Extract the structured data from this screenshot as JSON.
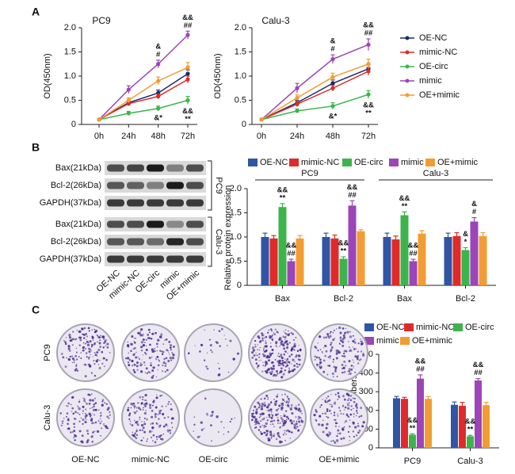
{
  "panels": [
    "A",
    "B",
    "C"
  ],
  "blot": {
    "row_labels": [
      "Bax(21kDa)",
      "Bcl-2(26kDa)",
      "GAPDH(37kDa)",
      "Bax(21kDa)",
      "Bcl-2(26kDa)",
      "GAPDH(37kDa)"
    ],
    "groups": [
      "PC9",
      "Calu-3"
    ],
    "column_labels": [
      "OE-NC",
      "mimic-NC",
      "OE-circ",
      "mimic",
      "OE+mimic"
    ]
  },
  "colony": {
    "row_labels": [
      "PC9",
      "Calu-3"
    ],
    "column_labels": [
      "OE-NC",
      "mimic-NC",
      "OE-circ",
      "mimic",
      "OE+mimic"
    ]
  },
  "chart_data": [
    {
      "type": "line",
      "title": "PC9",
      "ylabel": "OD(450nm)",
      "categories": [
        "0h",
        "24h",
        "48h",
        "72h"
      ],
      "ylim": [
        0,
        2
      ],
      "yticks": [
        0,
        0.5,
        {
          "value": 1,
          "label": "1.0"
        },
        1.5,
        {
          "value": 2,
          "label": "2.0"
        }
      ],
      "series": [
        {
          "color": "#1a2a6c",
          "values": [
            0.1,
            0.45,
            0.65,
            1.05
          ],
          "errors": [
            0.02,
            0.04,
            0.06,
            0.08
          ]
        },
        {
          "color": "#e02a2a",
          "values": [
            0.1,
            0.43,
            0.58,
            0.93
          ],
          "errors": [
            0.02,
            0.04,
            0.05,
            0.07
          ]
        },
        {
          "color": "#3cb44b",
          "values": [
            0.1,
            0.23,
            0.33,
            0.5
          ],
          "errors": [
            0.02,
            0.04,
            0.05,
            0.08
          ]
        },
        {
          "color": "#9b45b8",
          "values": [
            0.1,
            0.72,
            1.25,
            1.85
          ],
          "errors": [
            0.02,
            0.08,
            0.08,
            0.08
          ]
        },
        {
          "color": "#f39c34",
          "values": [
            0.1,
            0.5,
            0.9,
            1.18
          ],
          "errors": [
            0.02,
            0.05,
            0.08,
            0.1
          ]
        }
      ],
      "annotations": [
        "&",
        "#",
        "&&",
        "##",
        "&*",
        "&&",
        "**"
      ]
    },
    {
      "type": "line",
      "title": "Calu-3",
      "ylabel": "OD(450nm)",
      "categories": [
        "0h",
        "24h",
        "48h",
        "72h"
      ],
      "ylim": [
        0,
        2
      ],
      "yticks": [
        0,
        0.5,
        {
          "value": 1,
          "label": "1.0"
        },
        1.5,
        {
          "value": 2,
          "label": "2.0"
        }
      ],
      "series": [
        {
          "name": "OE-NC",
          "color": "#1a2a6c",
          "values": [
            0.1,
            0.45,
            0.85,
            1.15
          ],
          "errors": [
            0.02,
            0.05,
            0.07,
            0.08
          ]
        },
        {
          "name": "mimic-NC",
          "color": "#e02a2a",
          "values": [
            0.1,
            0.42,
            0.75,
            1.1
          ],
          "errors": [
            0.02,
            0.05,
            0.06,
            0.08
          ]
        },
        {
          "name": "OE-circ",
          "color": "#3cb44b",
          "values": [
            0.1,
            0.28,
            0.38,
            0.62
          ],
          "errors": [
            0.02,
            0.04,
            0.07,
            0.08
          ]
        },
        {
          "name": "mimic",
          "color": "#9b45b8",
          "values": [
            0.1,
            0.75,
            1.35,
            1.65
          ],
          "errors": [
            0.02,
            0.1,
            0.09,
            0.12
          ]
        },
        {
          "name": "OE+mimic",
          "color": "#f39c34",
          "values": [
            0.1,
            0.55,
            0.98,
            1.25
          ],
          "errors": [
            0.02,
            0.06,
            0.08,
            0.1
          ]
        }
      ],
      "annotations": [
        "&",
        "#",
        "&&",
        "##",
        "&*",
        "&&",
        "**"
      ]
    },
    {
      "type": "bar",
      "ylabel": "Relative protein expression",
      "categories": [
        "Bax",
        "Bcl-2",
        "Bax",
        "Bcl-2"
      ],
      "group_labels": [
        "PC9",
        "Calu-3"
      ],
      "ylim": [
        0,
        2
      ],
      "yticks": [
        0,
        0.5,
        {
          "value": 1,
          "label": "1.0"
        },
        1.5,
        {
          "value": 2,
          "label": "2.0"
        }
      ],
      "series": [
        {
          "name": "OE-NC",
          "color": "#2f55a4",
          "values": [
            1.0,
            1.0,
            1.0,
            1.0
          ],
          "errors": [
            0.08,
            0.08,
            0.08,
            0.08
          ]
        },
        {
          "name": "mimic-NC",
          "color": "#e02a2a",
          "values": [
            0.97,
            0.97,
            0.95,
            1.02
          ],
          "errors": [
            0.06,
            0.07,
            0.07,
            0.07
          ]
        },
        {
          "name": "OE-circ",
          "color": "#3cb44b",
          "values": [
            1.62,
            0.55,
            1.45,
            0.73
          ],
          "errors": [
            0.07,
            0.04,
            0.07,
            0.05
          ]
        },
        {
          "name": "mimic",
          "color": "#9b45b8",
          "values": [
            0.5,
            1.65,
            0.5,
            1.32
          ],
          "errors": [
            0.04,
            0.1,
            0.04,
            0.08
          ]
        },
        {
          "name": "OE+mimic",
          "color": "#f39c34",
          "values": [
            0.97,
            1.12,
            1.07,
            1.02
          ],
          "errors": [
            0.06,
            0.03,
            0.06,
            0.07
          ]
        }
      ],
      "annotations": [
        "&&",
        "**",
        "&&",
        "##",
        "&&",
        "**",
        "&&",
        "##",
        "&&",
        "**",
        "&&",
        "##",
        "&",
        "*",
        "&",
        "#"
      ]
    },
    {
      "type": "bar",
      "ylabel": "Cell numbers",
      "categories": [
        "PC9",
        "Calu-3"
      ],
      "ylim": [
        0,
        500
      ],
      "yticks": [
        0,
        100,
        200,
        300,
        400,
        500
      ],
      "series": [
        {
          "name": "OE-NC",
          "color": "#2f55a4",
          "values": [
            265,
            230
          ],
          "errors": [
            10,
            15
          ]
        },
        {
          "name": "mimic-NC",
          "color": "#e02a2a",
          "values": [
            262,
            225
          ],
          "errors": [
            8,
            18
          ]
        },
        {
          "name": "OE-circ",
          "color": "#3cb44b",
          "values": [
            70,
            62
          ],
          "errors": [
            5,
            5
          ]
        },
        {
          "name": "mimic",
          "color": "#9b45b8",
          "values": [
            370,
            360
          ],
          "errors": [
            20,
            10
          ]
        },
        {
          "name": "OE+mimic",
          "color": "#f39c34",
          "values": [
            262,
            228
          ],
          "errors": [
            12,
            15
          ]
        }
      ],
      "annotations": [
        "&&",
        "**",
        "&&",
        "##",
        "&&",
        "**",
        "&&",
        "##"
      ]
    }
  ]
}
